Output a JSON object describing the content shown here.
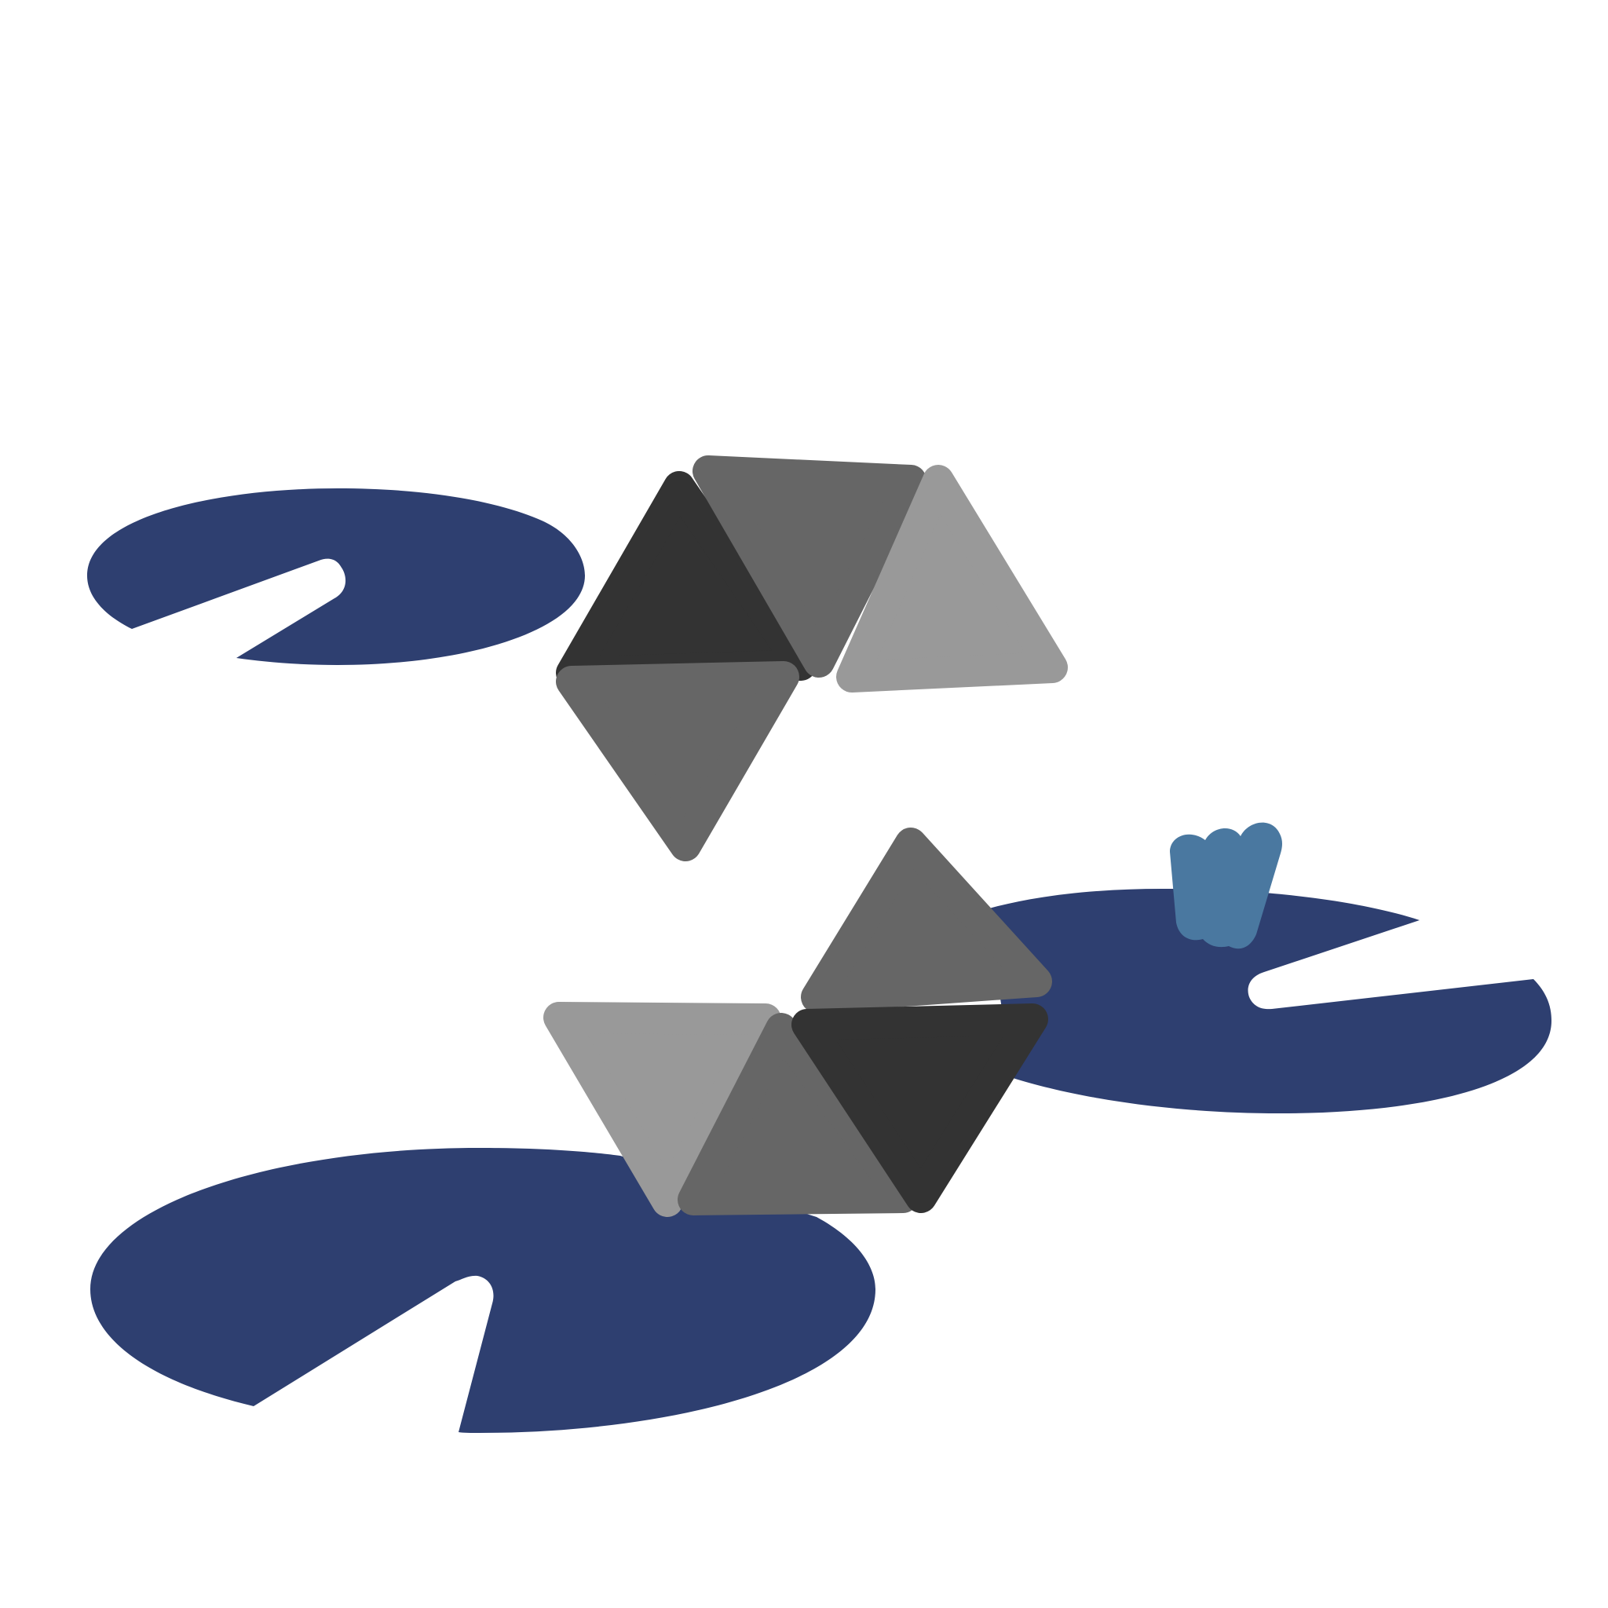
{
  "colors": {
    "background": "#ffffff",
    "lily_pad": "#2e3f70",
    "bucket": "#4a78a0",
    "tile_dark": "#333333",
    "tile_mid": "#666666",
    "tile_light": "#999999"
  },
  "icons": {
    "lily_pad": "lily-pad-icon",
    "bucket": "bucket-icon",
    "tile": "triangle-tile-icon"
  }
}
